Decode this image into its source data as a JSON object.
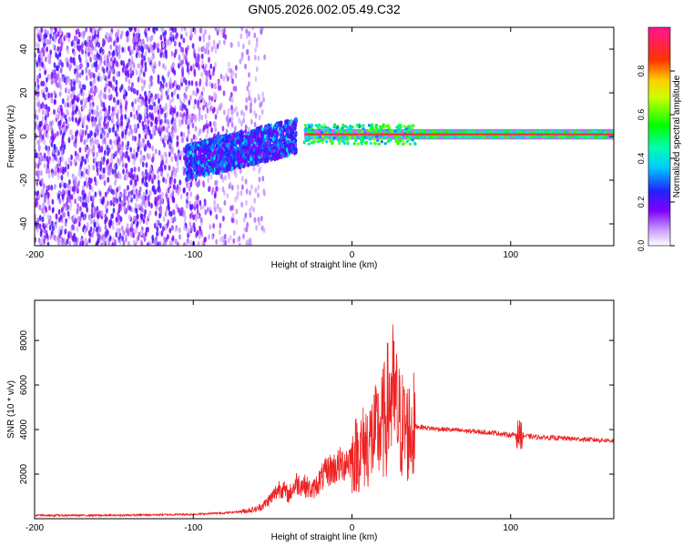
{
  "figure_title": "GN05.2026.002.05.49.C32",
  "chart_data": [
    {
      "type": "heatmap",
      "name": "spectrogram",
      "title": "GN05.2026.002.05.49.C32",
      "xlabel": "Height of straight line (km)",
      "ylabel": "Frequency (Hz)",
      "xlim": [
        -200,
        165
      ],
      "ylim": [
        -50,
        50
      ],
      "xticks": [
        -200,
        -100,
        0,
        100
      ],
      "yticks": [
        -40,
        -20,
        0,
        20,
        40
      ],
      "colorbar": {
        "label": "Normalized spectral amplitude",
        "range": [
          0,
          1
        ],
        "ticks": [
          0.0,
          0.2,
          0.4,
          0.6,
          0.8
        ],
        "tick_labels": [
          "0.0",
          "0.2",
          "0.4",
          "0.6",
          "0.8"
        ],
        "colormap": [
          "#ffffff",
          "#9900ff",
          "#2222ff",
          "#00ffff",
          "#00ff00",
          "#ffff00",
          "#ff0000",
          "#ff00aa"
        ]
      },
      "regions": [
        {
          "description": "broadband noise",
          "x": [
            -200,
            -70
          ],
          "freq_range": [
            -50,
            50
          ],
          "amplitude": 0.2
        },
        {
          "description": "onset cluster",
          "x": [
            -105,
            -35
          ],
          "freq_center": [
            -12,
            0
          ],
          "freq_halfwidth": 8,
          "amplitude": 0.3
        },
        {
          "description": "tonal line",
          "x": [
            -30,
            165
          ],
          "freq": 1.0,
          "amplitude": 0.9
        }
      ]
    },
    {
      "type": "line",
      "name": "snr",
      "xlabel": "Height of straight line (km)",
      "ylabel": "SNR (10 * v/v)",
      "xlim": [
        -200,
        165
      ],
      "ylim": [
        0,
        9800
      ],
      "xticks": [
        -200,
        -100,
        0,
        100
      ],
      "yticks": [
        2000,
        4000,
        6000,
        8000
      ],
      "color": "#ee2222",
      "series": [
        {
          "name": "SNR",
          "x": [
            -200,
            -150,
            -100,
            -80,
            -70,
            -60,
            -55,
            -50,
            -45,
            -40,
            -35,
            -30,
            -25,
            -20,
            -15,
            -10,
            -5,
            0,
            5,
            10,
            15,
            20,
            25,
            30,
            35,
            40,
            45,
            50,
            60,
            70,
            80,
            90,
            100,
            105,
            110,
            120,
            130,
            140,
            150,
            160,
            165
          ],
          "y": [
            150,
            150,
            200,
            260,
            320,
            430,
            650,
            1000,
            1450,
            1050,
            1600,
            1500,
            1250,
            1750,
            2150,
            2300,
            2500,
            2750,
            3050,
            3400,
            3750,
            4300,
            5700,
            4300,
            3900,
            4150,
            4100,
            4050,
            4000,
            3950,
            3900,
            3850,
            3750,
            3800,
            3700,
            3650,
            3620,
            3580,
            3550,
            3520,
            3500
          ]
        }
      ]
    }
  ]
}
